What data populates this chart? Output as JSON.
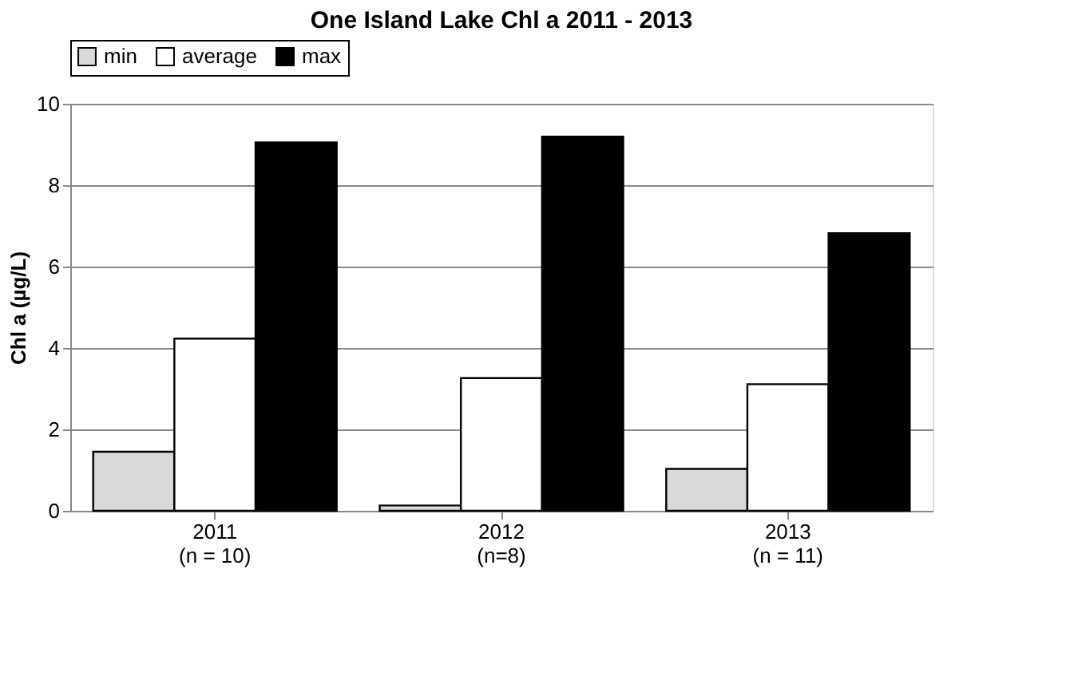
{
  "chart_data": {
    "type": "bar",
    "title": "One Island Lake Chl a  2011 - 2013",
    "ylabel": "Chl a (µg/L)",
    "categories": [
      "2011\n(n = 10)",
      "2012\n(n=8)",
      "2013\n(n = 11)"
    ],
    "series": [
      {
        "name": "min",
        "color": "#d9d9d9",
        "values": [
          1.45,
          0.13,
          1.03
        ]
      },
      {
        "name": "average",
        "color": "#ffffff",
        "values": [
          4.23,
          3.26,
          3.11
        ]
      },
      {
        "name": "max",
        "color": "#000000",
        "values": [
          9.05,
          9.19,
          6.82
        ]
      }
    ],
    "ylim": [
      0,
      10
    ],
    "yticks": [
      0,
      2,
      4,
      6,
      8,
      10
    ],
    "grid": "y",
    "legend": "top"
  }
}
